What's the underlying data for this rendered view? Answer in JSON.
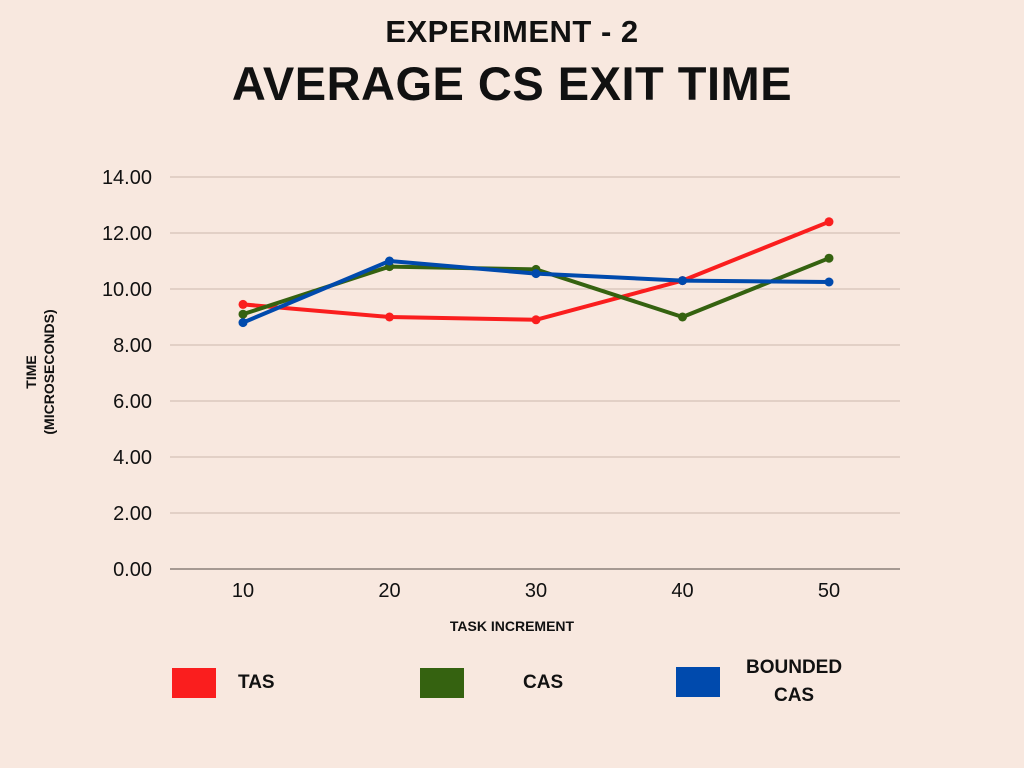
{
  "header": {
    "subtitle": "EXPERIMENT - 2",
    "title": "AVERAGE CS EXIT TIME"
  },
  "chart_data": {
    "type": "line",
    "title": "AVERAGE CS EXIT TIME",
    "subtitle": "EXPERIMENT - 2",
    "xlabel": "TASK INCREMENT",
    "ylabel_lines": [
      "TIME",
      "(MICROSECONDS)"
    ],
    "categories": [
      "10",
      "20",
      "30",
      "40",
      "50"
    ],
    "ylim": [
      0,
      14
    ],
    "y_ticks": [
      "0.00",
      "2.00",
      "4.00",
      "6.00",
      "8.00",
      "10.00",
      "12.00",
      "14.00"
    ],
    "grid": true,
    "legend_position": "bottom",
    "series": [
      {
        "name": "TAS",
        "color": "#fa1e1e",
        "values": [
          9.45,
          9.0,
          8.9,
          10.3,
          12.4
        ]
      },
      {
        "name": "CAS",
        "color": "#356210",
        "values": [
          9.1,
          10.8,
          10.7,
          9.0,
          11.1
        ]
      },
      {
        "name": "BOUNDED CAS",
        "color": "#004aad",
        "values": [
          8.8,
          11.0,
          10.55,
          10.3,
          10.25
        ]
      }
    ]
  },
  "legend": {
    "items": [
      {
        "label": "TAS",
        "color": "#fa1e1e"
      },
      {
        "label": "CAS",
        "color": "#356210"
      },
      {
        "label_lines": [
          "BOUNDED",
          "CAS"
        ],
        "color": "#004aad"
      }
    ]
  }
}
